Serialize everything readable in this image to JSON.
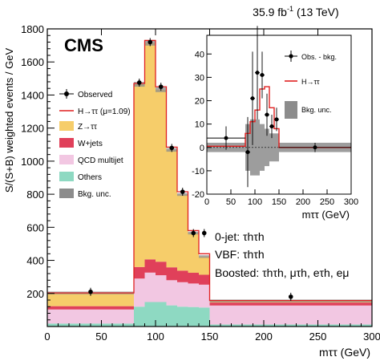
{
  "header": {
    "lumi": "35.9 fb",
    "lumi_exp": "-1",
    "energy": "(13 TeV)",
    "experiment": "CMS"
  },
  "legend": {
    "observed": "Observed",
    "signal": "H→ττ (μ=1.09)",
    "ztt": "Z→ττ",
    "wjets": "W+jets",
    "qcd": "QCD multijet",
    "others": "Others",
    "bkg_unc": "Bkg. unc."
  },
  "categories_text": {
    "line1": "0-jet: τhτh",
    "line2": "VBF: τhτh",
    "line3": "Boosted: τhτh, μτh, eτh, eμ"
  },
  "colors": {
    "ztt": "#f6cd6a",
    "wjets": "#e0405a",
    "qcd": "#f2c7e2",
    "others": "#8ed9c2",
    "signal": "#e02020",
    "unc": "#8c8c8c"
  },
  "chart_data": [
    {
      "type": "bar",
      "subtype": "stacked-histogram",
      "xlabel": "mττ (GeV)",
      "ylabel": "S/(S+B) weighted events / GeV",
      "xlim": [
        0,
        300
      ],
      "ylim": [
        0,
        1800
      ],
      "x_ticks": [
        0,
        50,
        100,
        150,
        200,
        250,
        300
      ],
      "y_ticks": [
        200,
        400,
        600,
        800,
        1000,
        1200,
        1400,
        1600,
        1800
      ],
      "bin_edges": [
        0,
        80,
        90,
        100,
        110,
        120,
        130,
        140,
        150,
        300
      ],
      "series": [
        {
          "name": "Others",
          "values": [
            18,
            120,
            148,
            148,
            128,
            120,
            118,
            115,
            12
          ]
        },
        {
          "name": "QCD multijet",
          "values": [
            85,
            170,
            178,
            162,
            152,
            148,
            142,
            138,
            115
          ]
        },
        {
          "name": "W+jets",
          "values": [
            20,
            70,
            80,
            82,
            78,
            70,
            65,
            60,
            18
          ]
        },
        {
          "name": "Z→ττ",
          "values": [
            80,
            1105,
            1310,
            1040,
            710,
            460,
            240,
            110,
            10
          ]
        }
      ],
      "signal_total": [
        203,
        1470,
        1730,
        1450,
        1085,
        815,
        580,
        440,
        157
      ],
      "observed": {
        "x": [
          40,
          85,
          95,
          105,
          115,
          125,
          135,
          145,
          225
        ],
        "y": [
          210,
          1475,
          1720,
          1450,
          1080,
          815,
          565,
          565,
          180
        ]
      },
      "annotations": [
        "0-jet: τhτh",
        "VBF: τhτh",
        "Boosted: τhτh, μτh, eτh, eμ"
      ]
    },
    {
      "type": "line",
      "subtype": "inset",
      "xlabel": "mττ (GeV)",
      "xlim": [
        0,
        300
      ],
      "ylim": [
        -20,
        48
      ],
      "x_ticks": [
        0,
        50,
        100,
        150,
        200,
        250,
        300
      ],
      "y_ticks": [
        -20,
        -10,
        0,
        10,
        20,
        30,
        40
      ],
      "bin_edges": [
        0,
        80,
        90,
        100,
        110,
        120,
        130,
        140,
        150,
        300
      ],
      "signal": [
        0.5,
        6,
        11,
        16,
        25,
        26,
        17,
        8,
        0
      ],
      "bkg_unc": [
        2,
        10,
        12,
        12,
        10,
        8,
        6,
        6,
        2
      ],
      "observed": {
        "x": [
          40,
          85,
          95,
          105,
          115,
          125,
          135,
          145,
          225
        ],
        "y": [
          4,
          -2,
          21,
          32,
          31,
          14,
          9,
          12,
          0
        ],
        "err": [
          5,
          15,
          20,
          20,
          10,
          9,
          5,
          5,
          2
        ]
      },
      "legend": [
        "Obs. - bkg.",
        "H→ττ",
        "Bkg. unc."
      ]
    }
  ]
}
